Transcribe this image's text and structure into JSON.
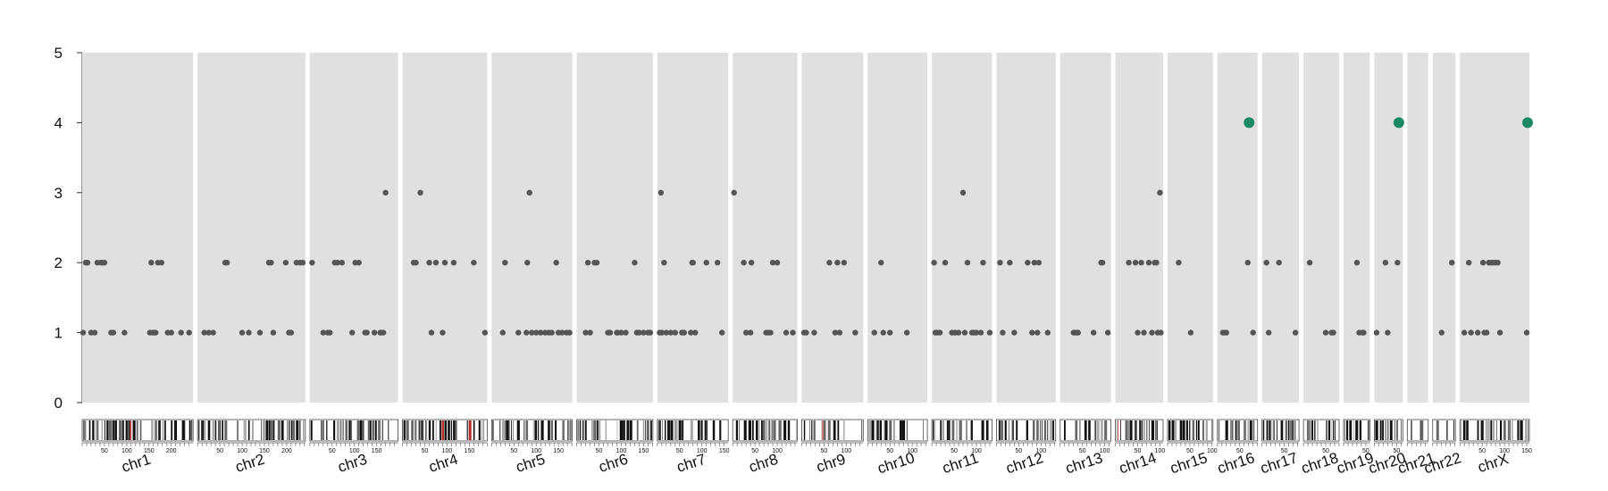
{
  "chart_data": {
    "type": "scatter",
    "title": "",
    "xlabel": "",
    "ylabel": "",
    "ylim": [
      0,
      5
    ],
    "yticks": [
      0,
      1,
      2,
      3,
      4,
      5
    ],
    "grid": false,
    "legend": "none",
    "colors": {
      "panel": "#e0e0e0",
      "point": "#555555",
      "highlight": "#1b8a64"
    },
    "chromosomes": [
      {
        "name": "chr1",
        "length_mb": 249,
        "ticks": [
          50,
          100,
          150,
          200
        ],
        "points": [
          [
            2,
            1
          ],
          [
            8,
            2
          ],
          [
            12,
            2
          ],
          [
            20,
            1
          ],
          [
            28,
            1
          ],
          [
            34,
            2
          ],
          [
            42,
            2
          ],
          [
            45,
            2
          ],
          [
            50,
            2
          ],
          [
            65,
            1
          ],
          [
            70,
            1
          ],
          [
            95,
            1
          ],
          [
            152,
            1
          ],
          [
            155,
            2
          ],
          [
            158,
            1
          ],
          [
            162,
            1
          ],
          [
            165,
            1
          ],
          [
            170,
            2
          ],
          [
            178,
            2
          ],
          [
            192,
            1
          ],
          [
            200,
            1
          ],
          [
            222,
            1
          ],
          [
            240,
            1
          ]
        ]
      },
      {
        "name": "chr2",
        "length_mb": 242,
        "ticks": [
          50,
          100,
          150,
          200
        ],
        "points": [
          [
            15,
            1
          ],
          [
            25,
            1
          ],
          [
            35,
            1
          ],
          [
            62,
            2
          ],
          [
            66,
            2
          ],
          [
            100,
            1
          ],
          [
            115,
            1
          ],
          [
            140,
            1
          ],
          [
            160,
            2
          ],
          [
            165,
            2
          ],
          [
            170,
            1
          ],
          [
            198,
            2
          ],
          [
            205,
            1
          ],
          [
            210,
            1
          ],
          [
            222,
            2
          ],
          [
            230,
            2
          ],
          [
            236,
            2
          ]
        ]
      },
      {
        "name": "chr3",
        "length_mb": 198,
        "ticks": [
          50,
          100,
          150
        ],
        "points": [
          [
            5,
            2
          ],
          [
            30,
            1
          ],
          [
            40,
            1
          ],
          [
            45,
            1
          ],
          [
            56,
            2
          ],
          [
            62,
            2
          ],
          [
            72,
            2
          ],
          [
            95,
            1
          ],
          [
            102,
            2
          ],
          [
            110,
            2
          ],
          [
            124,
            1
          ],
          [
            128,
            1
          ],
          [
            145,
            1
          ],
          [
            158,
            1
          ],
          [
            160,
            1
          ],
          [
            165,
            1
          ],
          [
            170,
            3
          ]
        ]
      },
      {
        "name": "chr4",
        "length_mb": 190,
        "ticks": [
          50,
          100,
          150
        ],
        "points": [
          [
            25,
            2
          ],
          [
            30,
            2
          ],
          [
            40,
            3
          ],
          [
            60,
            2
          ],
          [
            65,
            1
          ],
          [
            75,
            2
          ],
          [
            90,
            1
          ],
          [
            95,
            2
          ],
          [
            115,
            2
          ],
          [
            160,
            2
          ],
          [
            185,
            1
          ]
        ]
      },
      {
        "name": "chr5",
        "length_mb": 181,
        "ticks": [
          50,
          100,
          150
        ],
        "points": [
          [
            25,
            1
          ],
          [
            30,
            2
          ],
          [
            60,
            1
          ],
          [
            78,
            1
          ],
          [
            80,
            2
          ],
          [
            85,
            3
          ],
          [
            90,
            1
          ],
          [
            100,
            1
          ],
          [
            110,
            1
          ],
          [
            120,
            1
          ],
          [
            128,
            1
          ],
          [
            135,
            1
          ],
          [
            145,
            2
          ],
          [
            150,
            1
          ],
          [
            158,
            1
          ],
          [
            168,
            1
          ],
          [
            175,
            1
          ]
        ]
      },
      {
        "name": "chr6",
        "length_mb": 171,
        "ticks": [
          50,
          100,
          150
        ],
        "points": [
          [
            20,
            1
          ],
          [
            25,
            2
          ],
          [
            30,
            1
          ],
          [
            40,
            2
          ],
          [
            45,
            2
          ],
          [
            70,
            1
          ],
          [
            75,
            1
          ],
          [
            90,
            1
          ],
          [
            92,
            1
          ],
          [
            100,
            1
          ],
          [
            110,
            1
          ],
          [
            130,
            2
          ],
          [
            135,
            1
          ],
          [
            140,
            1
          ],
          [
            150,
            1
          ],
          [
            160,
            1
          ],
          [
            165,
            1
          ]
        ]
      },
      {
        "name": "chr7",
        "length_mb": 159,
        "ticks": [
          50,
          100,
          150
        ],
        "points": [
          [
            5,
            1
          ],
          [
            8,
            3
          ],
          [
            10,
            1
          ],
          [
            15,
            2
          ],
          [
            20,
            1
          ],
          [
            30,
            1
          ],
          [
            40,
            1
          ],
          [
            55,
            1
          ],
          [
            60,
            1
          ],
          [
            75,
            1
          ],
          [
            78,
            2
          ],
          [
            80,
            2
          ],
          [
            85,
            1
          ],
          [
            110,
            2
          ],
          [
            135,
            2
          ],
          [
            145,
            1
          ]
        ]
      },
      {
        "name": "chr8",
        "length_mb": 145,
        "ticks": [
          50,
          100
        ],
        "points": [
          [
            3,
            3
          ],
          [
            25,
            2
          ],
          [
            30,
            1
          ],
          [
            40,
            1
          ],
          [
            42,
            2
          ],
          [
            75,
            1
          ],
          [
            80,
            1
          ],
          [
            85,
            1
          ],
          [
            90,
            2
          ],
          [
            100,
            2
          ],
          [
            120,
            1
          ],
          [
            135,
            1
          ]
        ]
      },
      {
        "name": "chr9",
        "length_mb": 138,
        "ticks": [
          50,
          100
        ],
        "points": [
          [
            5,
            1
          ],
          [
            10,
            1
          ],
          [
            28,
            1
          ],
          [
            62,
            2
          ],
          [
            75,
            1
          ],
          [
            80,
            2
          ],
          [
            85,
            1
          ],
          [
            95,
            2
          ],
          [
            120,
            1
          ]
        ]
      },
      {
        "name": "chr10",
        "length_mb": 134,
        "ticks": [
          50,
          100
        ],
        "points": [
          [
            15,
            1
          ],
          [
            30,
            2
          ],
          [
            35,
            1
          ],
          [
            50,
            1
          ],
          [
            88,
            1
          ]
        ]
      },
      {
        "name": "chr11",
        "length_mb": 135,
        "ticks": [
          50,
          100
        ],
        "points": [
          [
            5,
            2
          ],
          [
            8,
            1
          ],
          [
            12,
            1
          ],
          [
            18,
            1
          ],
          [
            30,
            2
          ],
          [
            45,
            1
          ],
          [
            52,
            1
          ],
          [
            60,
            1
          ],
          [
            70,
            3
          ],
          [
            74,
            1
          ],
          [
            80,
            2
          ],
          [
            90,
            1
          ],
          [
            95,
            1
          ],
          [
            100,
            1
          ],
          [
            110,
            1
          ],
          [
            115,
            2
          ],
          [
            130,
            1
          ]
        ]
      },
      {
        "name": "chr12",
        "length_mb": 133,
        "ticks": [
          50,
          100
        ],
        "points": [
          [
            8,
            2
          ],
          [
            14,
            1
          ],
          [
            30,
            2
          ],
          [
            40,
            1
          ],
          [
            70,
            2
          ],
          [
            80,
            1
          ],
          [
            85,
            2
          ],
          [
            92,
            1
          ],
          [
            95,
            2
          ],
          [
            115,
            1
          ]
        ]
      },
      {
        "name": "chr13",
        "length_mb": 114,
        "ticks": [
          50,
          100
        ],
        "points": [
          [
            30,
            1
          ],
          [
            33,
            1
          ],
          [
            37,
            1
          ],
          [
            40,
            1
          ],
          [
            75,
            1
          ],
          [
            92,
            2
          ],
          [
            95,
            2
          ],
          [
            107,
            1
          ]
        ]
      },
      {
        "name": "chr14",
        "length_mb": 107,
        "ticks": [
          50,
          100
        ],
        "points": [
          [
            30,
            2
          ],
          [
            45,
            2
          ],
          [
            50,
            1
          ],
          [
            58,
            2
          ],
          [
            64,
            1
          ],
          [
            75,
            2
          ],
          [
            82,
            1
          ],
          [
            88,
            2
          ],
          [
            92,
            2
          ],
          [
            95,
            1
          ],
          [
            100,
            3
          ],
          [
            102,
            1
          ]
        ]
      },
      {
        "name": "chr15",
        "length_mb": 102,
        "ticks": [
          50,
          100
        ],
        "points": [
          [
            25,
            2
          ],
          [
            52,
            1
          ]
        ]
      },
      {
        "name": "chr16",
        "length_mb": 90,
        "ticks": [
          50
        ],
        "points": [
          [
            12,
            1
          ],
          [
            15,
            1
          ],
          [
            20,
            1
          ],
          [
            68,
            2
          ],
          [
            71,
            4
          ],
          [
            80,
            1
          ]
        ]
      },
      {
        "name": "chr17",
        "length_mb": 83,
        "ticks": [
          50
        ],
        "points": [
          [
            10,
            2
          ],
          [
            15,
            1
          ],
          [
            38,
            2
          ],
          [
            75,
            1
          ]
        ]
      },
      {
        "name": "chr18",
        "length_mb": 80,
        "ticks": [
          50
        ],
        "points": [
          [
            14,
            2
          ],
          [
            50,
            1
          ],
          [
            63,
            1
          ],
          [
            67,
            1
          ]
        ]
      },
      {
        "name": "chr19",
        "length_mb": 59,
        "ticks": [
          50
        ],
        "points": [
          [
            30,
            2
          ],
          [
            35,
            1
          ],
          [
            42,
            1
          ],
          [
            45,
            1
          ]
        ]
      },
      {
        "name": "chr20",
        "length_mb": 64,
        "ticks": [
          50
        ],
        "points": [
          [
            5,
            1
          ],
          [
            25,
            2
          ],
          [
            30,
            1
          ],
          [
            52,
            2
          ],
          [
            55,
            4
          ]
        ]
      },
      {
        "name": "chr21",
        "length_mb": 47,
        "ticks": [],
        "points": []
      },
      {
        "name": "chr22",
        "length_mb": 51,
        "ticks": [],
        "points": [
          [
            20,
            1
          ],
          [
            43,
            2
          ]
        ]
      },
      {
        "name": "chrX",
        "length_mb": 156,
        "ticks": [
          50,
          100,
          150
        ],
        "points": [
          [
            10,
            1
          ],
          [
            20,
            2
          ],
          [
            25,
            1
          ],
          [
            40,
            1
          ],
          [
            52,
            2
          ],
          [
            55,
            1
          ],
          [
            60,
            1
          ],
          [
            65,
            2
          ],
          [
            70,
            2
          ],
          [
            75,
            2
          ],
          [
            80,
            2
          ],
          [
            85,
            2
          ],
          [
            90,
            1
          ],
          [
            150,
            1
          ],
          [
            152,
            4
          ]
        ]
      }
    ]
  }
}
